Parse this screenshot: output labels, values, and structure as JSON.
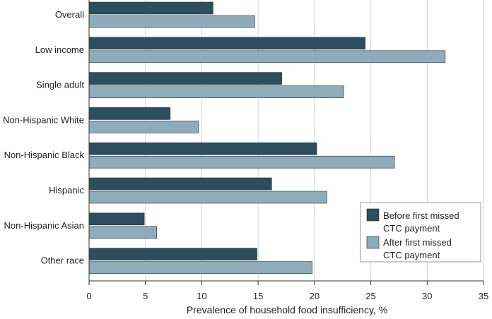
{
  "chart_data": {
    "type": "bar",
    "orientation": "horizontal",
    "categories": [
      "Overall",
      "Low income",
      "Single adult",
      "Non-Hispanic White",
      "Non-Hispanic Black",
      "Hispanic",
      "Non-Hispanic Asian",
      "Other race"
    ],
    "series": [
      {
        "name": "Before first missed CTC payment",
        "legend_lines": [
          "Before first missed",
          "CTC payment"
        ],
        "color": "#2d4e5e",
        "values": [
          11.0,
          24.5,
          17.1,
          7.2,
          20.2,
          16.2,
          4.9,
          14.9
        ]
      },
      {
        "name": "After first missed CTC payment",
        "legend_lines": [
          "After first missed",
          "CTC payment"
        ],
        "color": "#8facba",
        "values": [
          14.7,
          31.6,
          22.6,
          9.7,
          27.1,
          21.1,
          6.0,
          19.8
        ]
      }
    ],
    "xlabel": "Prevalence of household food insufficiency, %",
    "xlim": [
      0,
      35
    ],
    "xticks": [
      0,
      5,
      10,
      15,
      20,
      25,
      30,
      35
    ],
    "grid": "vertical",
    "legend_position": "bottom-right"
  }
}
